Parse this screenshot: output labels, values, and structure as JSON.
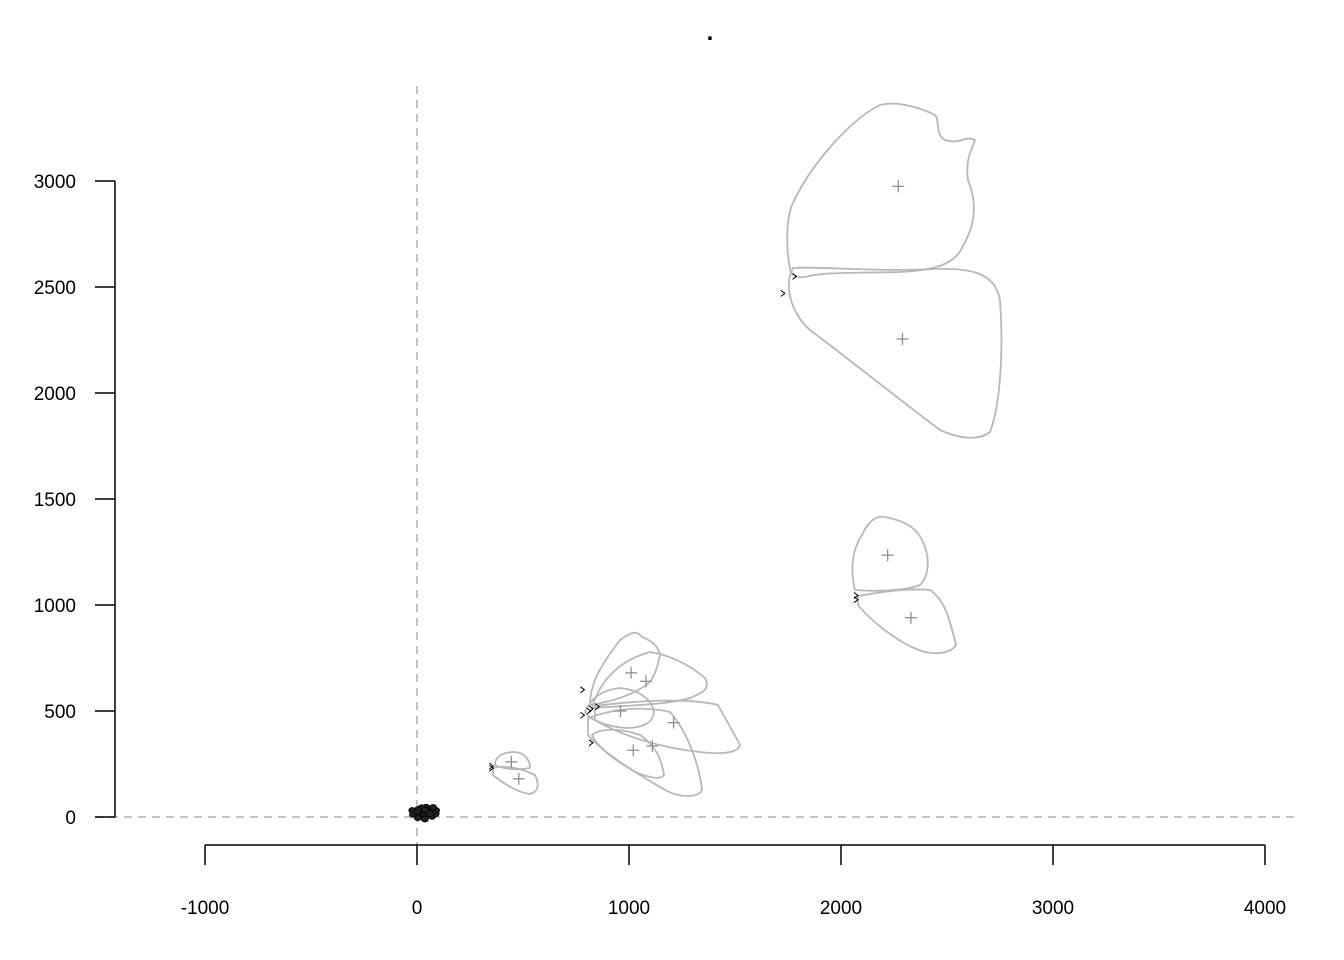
{
  "chart_data": {
    "type": "scatter",
    "title": ".",
    "xlabel": "",
    "ylabel": "",
    "xlim": [
      -1000,
      4000
    ],
    "ylim": [
      0,
      3000
    ],
    "x_ticks": [
      -1000,
      0,
      1000,
      2000,
      3000,
      4000
    ],
    "y_ticks": [
      0,
      500,
      1000,
      1500,
      2000,
      2500,
      3000
    ],
    "reference_lines": {
      "x": 0,
      "y": 0,
      "style": "dashed",
      "color": "#b0b0b0"
    },
    "grid": false,
    "legend": "none",
    "shape_color": "#b8b8b8",
    "centroid_color": "#909090",
    "origin_cluster": {
      "x": 40,
      "y": 25,
      "count": 20
    },
    "shapes": [
      {
        "id": "s1",
        "centroid": [
          2270,
          2975
        ],
        "anchor": [
          1790,
          2550
        ]
      },
      {
        "id": "s2",
        "centroid": [
          2290,
          2255
        ],
        "anchor": [
          1735,
          2470
        ]
      },
      {
        "id": "s3",
        "centroid": [
          2220,
          1235
        ],
        "anchor": [
          2080,
          1045
        ]
      },
      {
        "id": "s4",
        "centroid": [
          2330,
          940
        ],
        "anchor": [
          2080,
          1025
        ]
      },
      {
        "id": "s5",
        "centroid": [
          1010,
          680
        ],
        "anchor": [
          790,
          600
        ]
      },
      {
        "id": "s6",
        "centroid": [
          1080,
          640
        ],
        "anchor": [
          860,
          520
        ]
      },
      {
        "id": "s7",
        "centroid": [
          960,
          500
        ],
        "anchor": [
          790,
          480
        ]
      },
      {
        "id": "s8",
        "centroid": [
          1210,
          445
        ],
        "anchor": [
          830,
          510
        ]
      },
      {
        "id": "s9",
        "centroid": [
          1020,
          315
        ],
        "anchor": [
          830,
          350
        ]
      },
      {
        "id": "s10",
        "centroid": [
          1110,
          335
        ],
        "anchor": [
          820,
          500
        ]
      },
      {
        "id": "s11",
        "centroid": [
          445,
          260
        ],
        "anchor": [
          360,
          240
        ]
      },
      {
        "id": "s12",
        "centroid": [
          480,
          180
        ],
        "anchor": [
          360,
          230
        ]
      }
    ]
  }
}
